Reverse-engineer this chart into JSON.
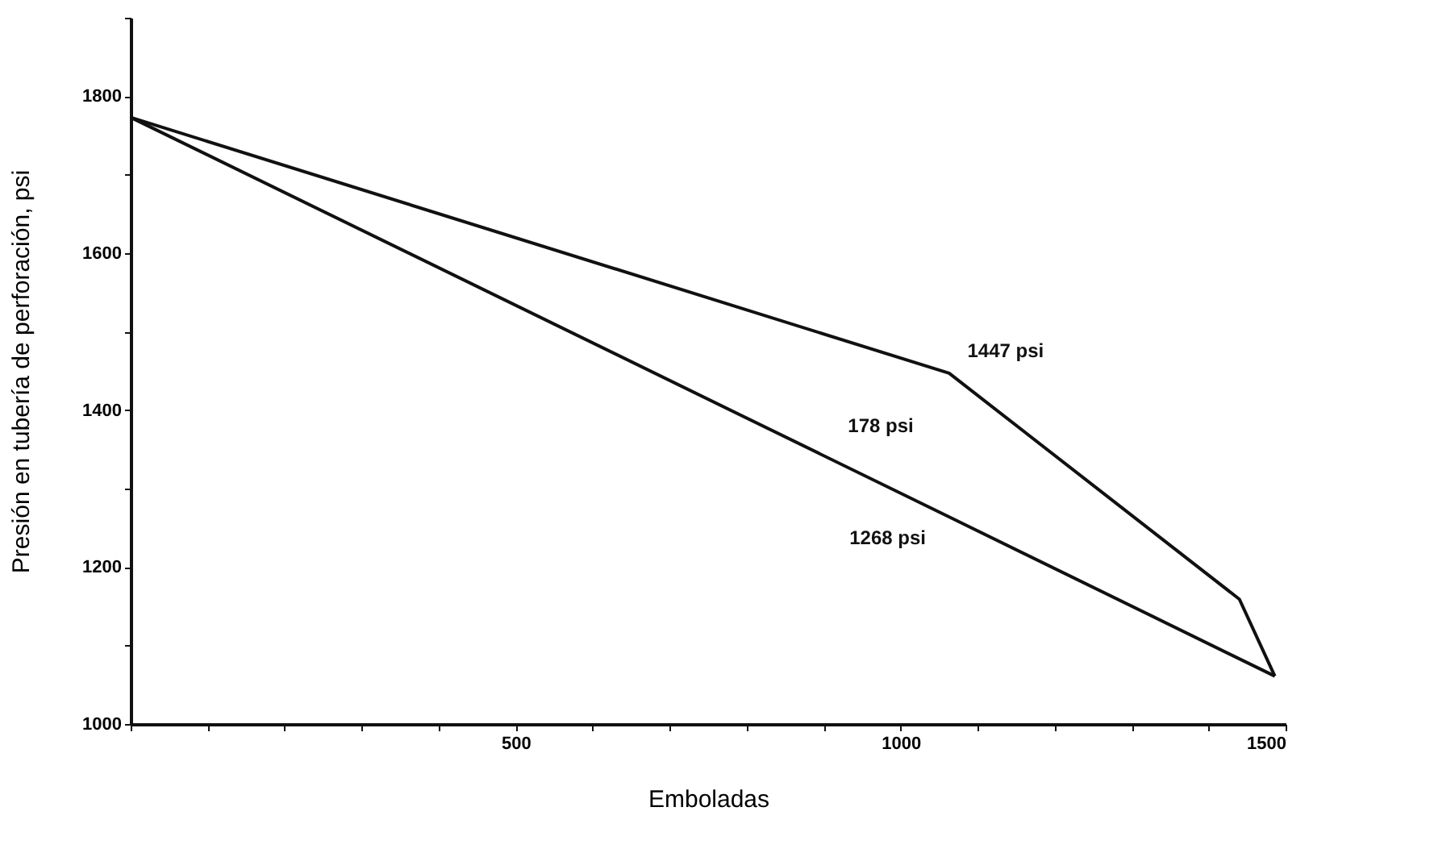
{
  "chart_data": {
    "type": "line",
    "xlabel": "Emboladas",
    "ylabel": "Presión en tubería de perforación, psi",
    "series": [
      {
        "color": "#111111",
        "x": [
          0,
          1063,
          1440,
          1486
        ],
        "values": [
          1773,
          1447,
          1159,
          1061
        ]
      },
      {
        "color": "#111111",
        "x": [
          0,
          1067,
          1486
        ],
        "values": [
          1773,
          1262,
          1061
        ]
      }
    ],
    "xlim": [
      0,
      1500
    ],
    "xticks": [
      {
        "value": 0,
        "label": null
      },
      {
        "value": 100,
        "label": null
      },
      {
        "value": 200,
        "label": null
      },
      {
        "value": 300,
        "label": null
      },
      {
        "value": 400,
        "label": null
      },
      500,
      {
        "value": 600,
        "label": null
      },
      {
        "value": 700,
        "label": null
      },
      {
        "value": 800,
        "label": null
      },
      {
        "value": 900,
        "label": null
      },
      1000,
      {
        "value": 1100,
        "label": null
      },
      {
        "value": 1200,
        "label": null
      },
      {
        "value": 1300,
        "label": null
      },
      {
        "value": 1400,
        "label": null
      },
      1500
    ],
    "ylim": [
      1000,
      1900
    ],
    "yticks": [
      1000,
      {
        "value": 1100,
        "label": null
      },
      1200,
      {
        "value": 1300,
        "label": null
      },
      1400,
      {
        "value": 1500,
        "label": null
      },
      1600,
      {
        "value": 1700,
        "label": null
      },
      1800,
      {
        "value": 1900,
        "label": null
      }
    ],
    "annotations": [
      {
        "text": "1447 psi",
        "x": 1063,
        "y": 1447
      },
      "178 psi",
      {
        "text": "1268 psi",
        "x": 1067,
        "y": 1262
      }
    ],
    "grid": false,
    "marker": "none",
    "line_style": "solid"
  }
}
